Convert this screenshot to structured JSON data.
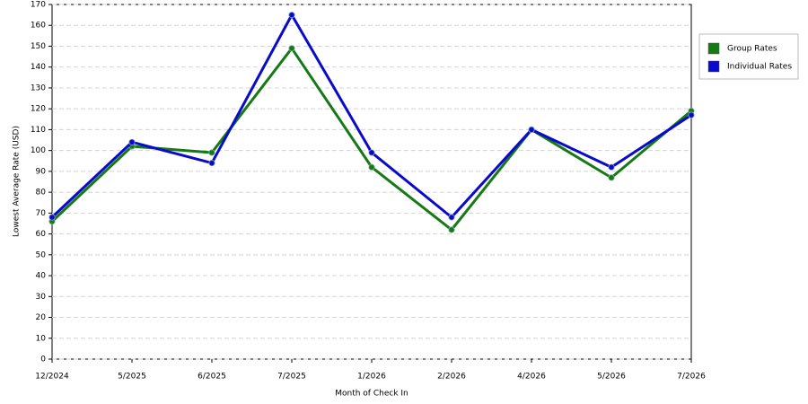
{
  "chart_data": {
    "type": "line",
    "x_label": "Month of Check In",
    "y_label": "Lowest Average Rate (USD)",
    "categories": [
      "12/2024",
      "5/2025",
      "6/2025",
      "7/2025",
      "1/2026",
      "2/2026",
      "4/2026",
      "5/2026",
      "7/2026"
    ],
    "series": [
      {
        "name": "Group Rates",
        "color": "#157a15",
        "values": [
          66,
          102,
          99,
          149,
          92,
          62,
          110,
          87,
          119
        ]
      },
      {
        "name": "Individual Rates",
        "color": "#0a0acc",
        "values": [
          68,
          104,
          94,
          165,
          99,
          68,
          110,
          92,
          117
        ]
      }
    ],
    "ylim": [
      0,
      170
    ],
    "yticks": [
      0,
      10,
      20,
      30,
      40,
      50,
      60,
      70,
      80,
      90,
      100,
      110,
      120,
      130,
      140,
      150,
      160,
      170
    ],
    "grid": true,
    "legend": "right"
  }
}
